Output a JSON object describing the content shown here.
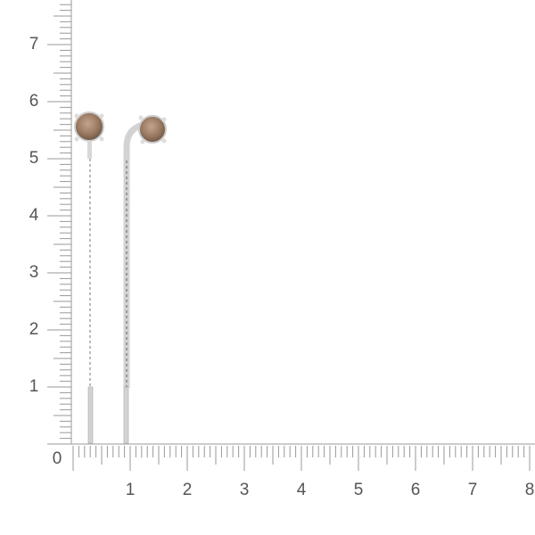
{
  "ruler": {
    "vertical_labels": [
      "1",
      "2",
      "3",
      "4",
      "5",
      "6",
      "7"
    ],
    "horizontal_labels": [
      "1",
      "2",
      "3",
      "4",
      "5",
      "6",
      "7",
      "8"
    ],
    "origin_label": "0",
    "unit_subdivisions": 10
  },
  "product": {
    "item": "stud-threader earrings with smoky quartz stones",
    "stone_color": "#9b7a62",
    "metal_color": "#c9c9c9"
  }
}
